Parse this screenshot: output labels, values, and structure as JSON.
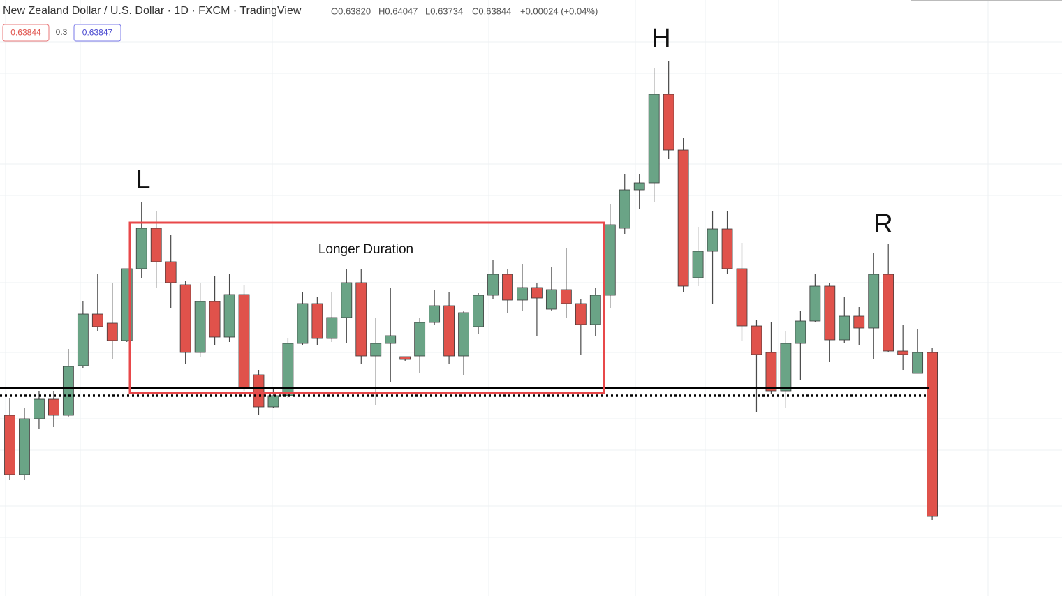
{
  "header": {
    "title": "New Zealand Dollar / U.S. Dollar · 1D · FXCM · TradingView",
    "ohlc": [
      "O0.63820",
      "H0.64047",
      "L0.63734",
      "C0.63844",
      "+0.00024 (+0.04%)"
    ],
    "badges": [
      "0.63844",
      "0.3",
      "0.63847"
    ]
  },
  "annotations": {
    "left": "L",
    "head": "H",
    "right": "R",
    "box": "Longer Duration"
  },
  "chart_data": {
    "type": "candlestick",
    "ylim": [
      0.6,
      0.6854
    ],
    "up_color": "#6aa486",
    "down_color": "#e0524b",
    "open": [
      0.6259,
      0.6174,
      0.6254,
      0.6282,
      0.6259,
      0.633,
      0.6404,
      0.6391,
      0.6366,
      0.6469,
      0.6527,
      0.6479,
      0.6446,
      0.6349,
      0.6422,
      0.6371,
      0.6432,
      0.6317,
      0.6271,
      0.6287,
      0.6362,
      0.6419,
      0.6369,
      0.6399,
      0.6449,
      0.6344,
      0.6362,
      0.6343,
      0.6344,
      0.6392,
      0.6416,
      0.6344,
      0.6386,
      0.6431,
      0.6461,
      0.6424,
      0.6442,
      0.6411,
      0.6439,
      0.6419,
      0.6389,
      0.6431,
      0.6527,
      0.6582,
      0.6592,
      0.6719,
      0.6639,
      0.6456,
      0.6494,
      0.6526,
      0.6469,
      0.6387,
      0.6349,
      0.6294,
      0.6362,
      0.6394,
      0.6444,
      0.6367,
      0.6401,
      0.6384,
      0.6461,
      0.6351,
      0.6319,
      0.6349
    ],
    "high": [
      0.6284,
      0.6269,
      0.6294,
      0.6294,
      0.6354,
      0.6422,
      0.6462,
      0.6449,
      0.6469,
      0.6564,
      0.6552,
      0.6517,
      0.6451,
      0.6449,
      0.6459,
      0.6461,
      0.6446,
      0.6324,
      0.6299,
      0.6369,
      0.6436,
      0.6429,
      0.6436,
      0.6469,
      0.6469,
      0.6399,
      0.6442,
      0.6343,
      0.6399,
      0.6439,
      0.6436,
      0.6409,
      0.6434,
      0.6482,
      0.6469,
      0.6476,
      0.6449,
      0.6472,
      0.6499,
      0.6426,
      0.6442,
      0.6562,
      0.6604,
      0.6604,
      0.6756,
      0.6766,
      0.6656,
      0.6529,
      0.6552,
      0.6552,
      0.6506,
      0.6396,
      0.6392,
      0.6379,
      0.6409,
      0.6461,
      0.6449,
      0.6429,
      0.6414,
      0.6492,
      0.6504,
      0.6389,
      0.6382,
      0.6356
    ],
    "low": [
      0.6166,
      0.6166,
      0.6239,
      0.6242,
      0.6256,
      0.6326,
      0.6379,
      0.6339,
      0.6364,
      0.6456,
      0.6442,
      0.6412,
      0.6332,
      0.6342,
      0.6359,
      0.6364,
      0.6294,
      0.6259,
      0.6269,
      0.6284,
      0.6359,
      0.6359,
      0.6364,
      0.6362,
      0.6332,
      0.6274,
      0.6306,
      0.6337,
      0.6319,
      0.6389,
      0.6332,
      0.6316,
      0.6376,
      0.6426,
      0.6406,
      0.6409,
      0.6372,
      0.6409,
      0.6399,
      0.6346,
      0.6372,
      0.6412,
      0.6519,
      0.6554,
      0.6564,
      0.6626,
      0.6436,
      0.6444,
      0.6419,
      0.6462,
      0.6366,
      0.6264,
      0.6289,
      0.6269,
      0.6309,
      0.6392,
      0.6336,
      0.6362,
      0.6359,
      0.6339,
      0.6349,
      0.6324,
      0.6319,
      0.6109
    ],
    "close": [
      0.6174,
      0.6254,
      0.6282,
      0.6259,
      0.6329,
      0.6404,
      0.6386,
      0.6366,
      0.6469,
      0.6527,
      0.6479,
      0.6449,
      0.6349,
      0.6422,
      0.6371,
      0.6432,
      0.6299,
      0.6271,
      0.6287,
      0.6362,
      0.6419,
      0.6369,
      0.6399,
      0.6449,
      0.6344,
      0.6362,
      0.6373,
      0.6339,
      0.6392,
      0.6416,
      0.6344,
      0.6406,
      0.6431,
      0.6461,
      0.6424,
      0.6442,
      0.6427,
      0.6439,
      0.6419,
      0.6389,
      0.6431,
      0.6532,
      0.6582,
      0.6592,
      0.6719,
      0.6639,
      0.6444,
      0.6494,
      0.6526,
      0.6469,
      0.6387,
      0.6346,
      0.6294,
      0.6362,
      0.6394,
      0.6444,
      0.6367,
      0.6401,
      0.6384,
      0.6461,
      0.6351,
      0.6346,
      0.6349,
      0.6114
    ],
    "hlines": [
      {
        "value": 0.6298,
        "style": "solid",
        "color": "#000000"
      },
      {
        "value": 0.6287,
        "style": "dotted",
        "color": "#000000"
      }
    ]
  }
}
